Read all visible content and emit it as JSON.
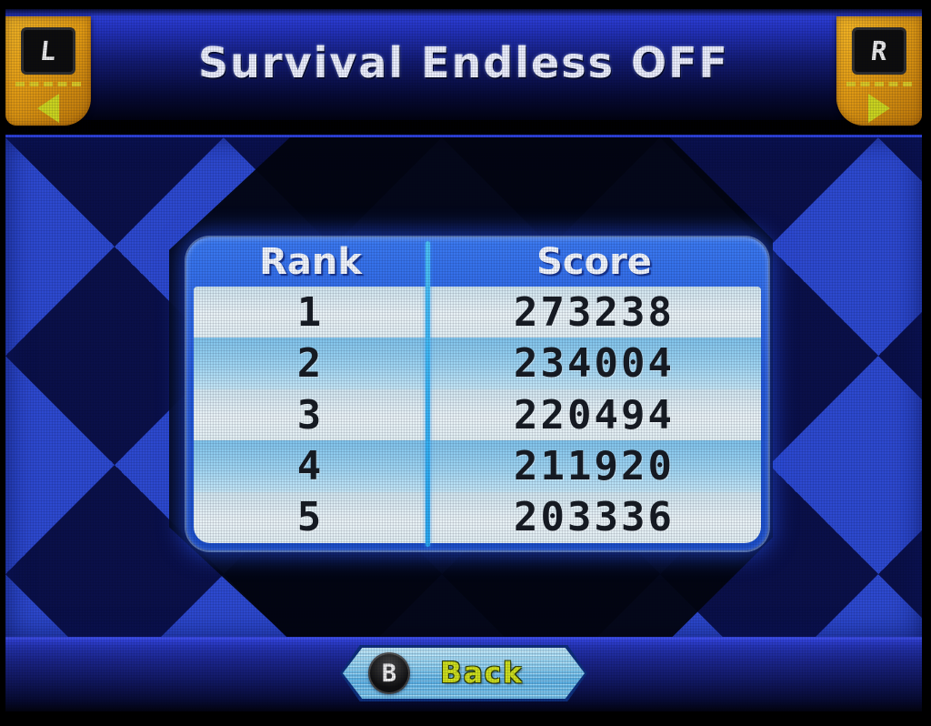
{
  "screen": {
    "title": "Survival Endless OFF",
    "shoulder_left": {
      "label": "L",
      "arrow": "left-arrow"
    },
    "shoulder_right": {
      "label": "R",
      "arrow": "right-arrow"
    },
    "table": {
      "columns": [
        "Rank",
        "Score"
      ],
      "rows": [
        {
          "rank": "1",
          "score": "273238"
        },
        {
          "rank": "2",
          "score": "234004"
        },
        {
          "rank": "3",
          "score": "220494"
        },
        {
          "rank": "4",
          "score": "211920"
        },
        {
          "rank": "5",
          "score": "203336"
        }
      ]
    },
    "back_button": {
      "button_glyph": "B",
      "label": "Back"
    },
    "colors": {
      "header_top_blue": "#2c3ed6",
      "background_blue": "#2d49cf",
      "diamond_dark_navy": "#0a1148",
      "panel_header_blue": "#2257d8",
      "row_light": "#e8f1f5",
      "row_blue": "#9fd4f1",
      "column_divider_cyan": "#38b6f4",
      "tab_orange": "#e09a14",
      "tab_arrow_yellow": "#c9d21f",
      "back_fill_cyan": "#8fd2f2",
      "back_label_yellow": "#ccdc1c",
      "score_text_dark": "#171c23"
    }
  }
}
